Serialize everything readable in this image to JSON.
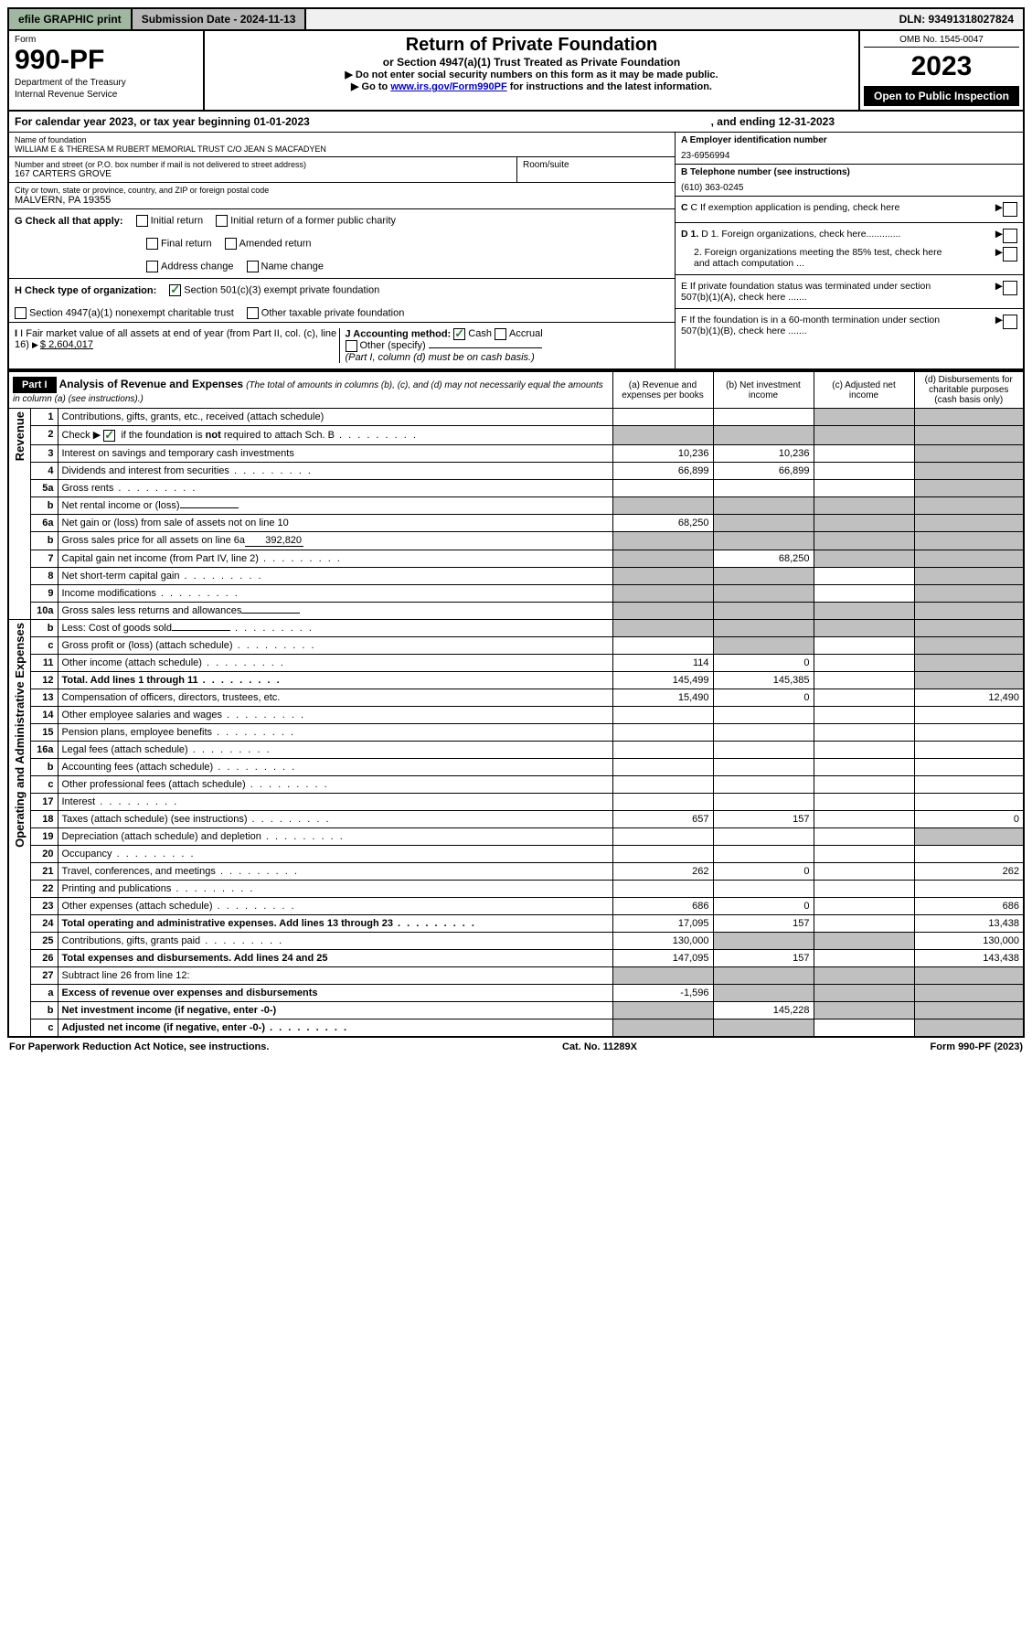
{
  "topbar": {
    "efile": "efile GRAPHIC print",
    "submission": "Submission Date - 2024-11-13",
    "dln": "DLN: 93491318027824"
  },
  "header": {
    "form_label": "Form",
    "form_num": "990-PF",
    "dept": "Department of the Treasury",
    "irs": "Internal Revenue Service",
    "title": "Return of Private Foundation",
    "sub1": "or Section 4947(a)(1) Trust Treated as Private Foundation",
    "sub2": "▶ Do not enter social security numbers on this form as it may be made public.",
    "sub3_pre": "▶ Go to ",
    "sub3_link": "www.irs.gov/Form990PF",
    "sub3_post": " for instructions and the latest information.",
    "omb": "OMB No. 1545-0047",
    "year": "2023",
    "open": "Open to Public Inspection"
  },
  "cal": {
    "text1": "For calendar year 2023, or tax year beginning 01-01-2023",
    "text2": ", and ending 12-31-2023"
  },
  "info": {
    "name_label": "Name of foundation",
    "name": "WILLIAM E & THERESA M RUBERT MEMORIAL TRUST C/O JEAN S MACFADYEN",
    "addr_label": "Number and street (or P.O. box number if mail is not delivered to street address)",
    "addr": "167 CARTERS GROVE",
    "room_label": "Room/suite",
    "city_label": "City or town, state or province, country, and ZIP or foreign postal code",
    "city": "MALVERN, PA  19355",
    "a_label": "A Employer identification number",
    "a_val": "23-6956994",
    "b_label": "B Telephone number (see instructions)",
    "b_val": "(610) 363-0245",
    "c_label": "C If exemption application is pending, check here",
    "d1": "D 1. Foreign organizations, check here.............",
    "d2": "2. Foreign organizations meeting the 85% test, check here and attach computation ...",
    "e": "E  If private foundation status was terminated under section 507(b)(1)(A), check here .......",
    "f": "F  If the foundation is in a 60-month termination under section 507(b)(1)(B), check here .......",
    "g": "G Check all that apply:",
    "g1": "Initial return",
    "g2": "Initial return of a former public charity",
    "g3": "Final return",
    "g4": "Amended return",
    "g5": "Address change",
    "g6": "Name change",
    "h": "H Check type of organization:",
    "h1": "Section 501(c)(3) exempt private foundation",
    "h2": "Section 4947(a)(1) nonexempt charitable trust",
    "h3": "Other taxable private foundation",
    "i": "I Fair market value of all assets at end of year (from Part II, col. (c), line 16)",
    "i_val": "$  2,604,017",
    "j": "J Accounting method:",
    "j1": "Cash",
    "j2": "Accrual",
    "j3": "Other (specify)",
    "j_note": "(Part I, column (d) must be on cash basis.)"
  },
  "part1": {
    "label": "Part I",
    "title": "Analysis of Revenue and Expenses",
    "title_note": "(The total of amounts in columns (b), (c), and (d) may not necessarily equal the amounts in column (a) (see instructions).)",
    "col_a": "(a) Revenue and expenses per books",
    "col_b": "(b) Net investment income",
    "col_c": "(c) Adjusted net income",
    "col_d": "(d) Disbursements for charitable purposes (cash basis only)",
    "side_rev": "Revenue",
    "side_exp": "Operating and Administrative Expenses"
  },
  "rows": [
    {
      "n": "1",
      "desc": "Contributions, gifts, grants, etc., received (attach schedule)",
      "a": "",
      "b": "",
      "c": "g",
      "d": "g"
    },
    {
      "n": "2",
      "desc": "Check ▶ ☑ if the foundation is not required to attach Sch. B",
      "dots": true,
      "a": "g",
      "b": "g",
      "c": "g",
      "d": "g",
      "checkrow": true
    },
    {
      "n": "3",
      "desc": "Interest on savings and temporary cash investments",
      "a": "10,236",
      "b": "10,236",
      "c": "",
      "d": "g"
    },
    {
      "n": "4",
      "desc": "Dividends and interest from securities",
      "dots": true,
      "a": "66,899",
      "b": "66,899",
      "c": "",
      "d": "g"
    },
    {
      "n": "5a",
      "desc": "Gross rents",
      "dots": true,
      "a": "",
      "b": "",
      "c": "",
      "d": "g"
    },
    {
      "n": "b",
      "desc": "Net rental income or (loss)",
      "input": "",
      "a": "g",
      "b": "g",
      "c": "g",
      "d": "g"
    },
    {
      "n": "6a",
      "desc": "Net gain or (loss) from sale of assets not on line 10",
      "a": "68,250",
      "b": "g",
      "c": "g",
      "d": "g"
    },
    {
      "n": "b",
      "desc": "Gross sales price for all assets on line 6a",
      "input": "392,820",
      "a": "g",
      "b": "g",
      "c": "g",
      "d": "g"
    },
    {
      "n": "7",
      "desc": "Capital gain net income (from Part IV, line 2)",
      "dots": true,
      "a": "g",
      "b": "68,250",
      "c": "g",
      "d": "g"
    },
    {
      "n": "8",
      "desc": "Net short-term capital gain",
      "dots": true,
      "a": "g",
      "b": "g",
      "c": "",
      "d": "g"
    },
    {
      "n": "9",
      "desc": "Income modifications",
      "dots": true,
      "a": "g",
      "b": "g",
      "c": "",
      "d": "g"
    },
    {
      "n": "10a",
      "desc": "Gross sales less returns and allowances",
      "input": "",
      "a": "g",
      "b": "g",
      "c": "g",
      "d": "g"
    },
    {
      "n": "b",
      "desc": "Less: Cost of goods sold",
      "dots": true,
      "input": "",
      "a": "g",
      "b": "g",
      "c": "g",
      "d": "g"
    },
    {
      "n": "c",
      "desc": "Gross profit or (loss) (attach schedule)",
      "dots": true,
      "a": "",
      "b": "g",
      "c": "",
      "d": "g"
    },
    {
      "n": "11",
      "desc": "Other income (attach schedule)",
      "dots": true,
      "a": "114",
      "b": "0",
      "c": "",
      "d": "g"
    },
    {
      "n": "12",
      "desc": "Total. Add lines 1 through 11",
      "dots": true,
      "bold": true,
      "a": "145,499",
      "b": "145,385",
      "c": "",
      "d": "g"
    },
    {
      "n": "13",
      "desc": "Compensation of officers, directors, trustees, etc.",
      "a": "15,490",
      "b": "0",
      "c": "",
      "d": "12,490"
    },
    {
      "n": "14",
      "desc": "Other employee salaries and wages",
      "dots": true,
      "a": "",
      "b": "",
      "c": "",
      "d": ""
    },
    {
      "n": "15",
      "desc": "Pension plans, employee benefits",
      "dots": true,
      "a": "",
      "b": "",
      "c": "",
      "d": ""
    },
    {
      "n": "16a",
      "desc": "Legal fees (attach schedule)",
      "dots": true,
      "a": "",
      "b": "",
      "c": "",
      "d": ""
    },
    {
      "n": "b",
      "desc": "Accounting fees (attach schedule)",
      "dots": true,
      "a": "",
      "b": "",
      "c": "",
      "d": ""
    },
    {
      "n": "c",
      "desc": "Other professional fees (attach schedule)",
      "dots": true,
      "a": "",
      "b": "",
      "c": "",
      "d": ""
    },
    {
      "n": "17",
      "desc": "Interest",
      "dots": true,
      "a": "",
      "b": "",
      "c": "",
      "d": ""
    },
    {
      "n": "18",
      "desc": "Taxes (attach schedule) (see instructions)",
      "dots": true,
      "a": "657",
      "b": "157",
      "c": "",
      "d": "0"
    },
    {
      "n": "19",
      "desc": "Depreciation (attach schedule) and depletion",
      "dots": true,
      "a": "",
      "b": "",
      "c": "",
      "d": "g"
    },
    {
      "n": "20",
      "desc": "Occupancy",
      "dots": true,
      "a": "",
      "b": "",
      "c": "",
      "d": ""
    },
    {
      "n": "21",
      "desc": "Travel, conferences, and meetings",
      "dots": true,
      "a": "262",
      "b": "0",
      "c": "",
      "d": "262"
    },
    {
      "n": "22",
      "desc": "Printing and publications",
      "dots": true,
      "a": "",
      "b": "",
      "c": "",
      "d": ""
    },
    {
      "n": "23",
      "desc": "Other expenses (attach schedule)",
      "dots": true,
      "a": "686",
      "b": "0",
      "c": "",
      "d": "686"
    },
    {
      "n": "24",
      "desc": "Total operating and administrative expenses. Add lines 13 through 23",
      "dots": true,
      "bold": true,
      "a": "17,095",
      "b": "157",
      "c": "",
      "d": "13,438"
    },
    {
      "n": "25",
      "desc": "Contributions, gifts, grants paid",
      "dots": true,
      "a": "130,000",
      "b": "g",
      "c": "g",
      "d": "130,000"
    },
    {
      "n": "26",
      "desc": "Total expenses and disbursements. Add lines 24 and 25",
      "bold": true,
      "a": "147,095",
      "b": "157",
      "c": "",
      "d": "143,438"
    },
    {
      "n": "27",
      "desc": "Subtract line 26 from line 12:",
      "a": "g",
      "b": "g",
      "c": "g",
      "d": "g"
    },
    {
      "n": "a",
      "desc": "Excess of revenue over expenses and disbursements",
      "bold": true,
      "a": "-1,596",
      "b": "g",
      "c": "g",
      "d": "g"
    },
    {
      "n": "b",
      "desc": "Net investment income (if negative, enter -0-)",
      "bold": true,
      "a": "g",
      "b": "145,228",
      "c": "g",
      "d": "g"
    },
    {
      "n": "c",
      "desc": "Adjusted net income (if negative, enter -0-)",
      "dots": true,
      "bold": true,
      "a": "g",
      "b": "g",
      "c": "",
      "d": "g"
    }
  ],
  "footer": {
    "left": "For Paperwork Reduction Act Notice, see instructions.",
    "mid": "Cat. No. 11289X",
    "right": "Form 990-PF (2023)"
  }
}
